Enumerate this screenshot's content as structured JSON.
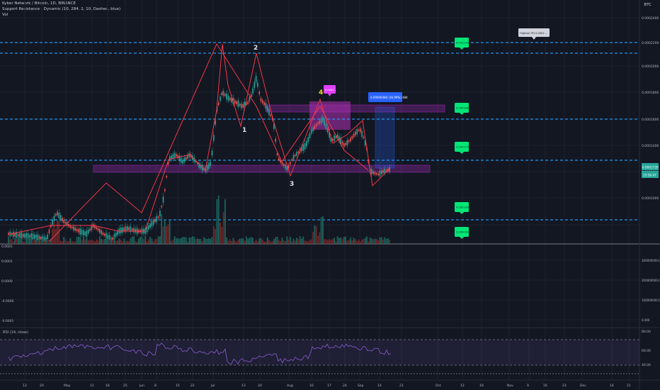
{
  "header": {
    "title": "Kyber Network / Bitcoin, 1D, BINANCE",
    "indicator": "Support Resistance - Dynamic (10, 284, 2, 10, Dashed, blue)",
    "volume_label": "Vol",
    "currency": "BTC"
  },
  "annotations": {
    "highest_label": "Highest: PH 0.0002 ...",
    "measure_label": "0.00000484 (16.99%) 484",
    "wave_top_label": "0.0001..."
  },
  "chart_data": [
    {
      "type": "line",
      "name": "price-panel",
      "xlabel": "",
      "ylabel": "",
      "x_ticks": [
        "13",
        "20",
        "May",
        "11",
        "18",
        "25",
        "Jun",
        "8",
        "15",
        "22",
        "Jul",
        "13",
        "20",
        "Aug",
        "10",
        "17",
        "24",
        "Sep",
        "14",
        "21",
        "Oct",
        "12",
        "19",
        "Nov",
        "9",
        "16",
        "23",
        "Dec",
        "14",
        "21"
      ],
      "support_resistance_levels": [
        {
          "value": 0.00023,
          "label": "0.0002300"
        },
        {
          "value": 0.000188,
          "label": "0.0001880"
        },
        {
          "value": 0.000177,
          "label": "0.0001770"
        },
        {
          "value": 0.0001,
          "label": "0.0001000"
        },
        {
          "value": 9.2e-05,
          "label": "0.0000920"
        }
      ],
      "wave_labels": [
        "1",
        "2",
        "3",
        "4"
      ],
      "last_price_label": "0.0001720",
      "countdown_label": "15:56:47",
      "y_tick_labels": [
        "0.0002400",
        "0.0002200",
        "0.0002000",
        "0.0001800",
        "0.0001600",
        "0.0001400",
        "0.0001200",
        "0.0001000"
      ]
    },
    {
      "type": "line",
      "name": "oscillator-panel",
      "y_tick_labels": [
        "0.0001",
        "0.0000",
        "-0.0000",
        "-0.0001"
      ],
      "right_tick_labels": [
        "300000000.000",
        "200000000.000",
        "100000000.000",
        "0.000"
      ],
      "left_label": "0.0001"
    },
    {
      "type": "line",
      "name": "rsi-panel",
      "title": "RSI (14, close)",
      "y_tick_labels": [
        "80.00",
        "60.00",
        "40.00"
      ],
      "upper_band": 70,
      "lower_band": 30
    }
  ],
  "colors": {
    "background": "#131722",
    "up": "#26a69a",
    "down": "#ef5350",
    "zigzag": "#f23645",
    "sr_line": "#2196f3",
    "zone": "#9c27b0",
    "sr_tag": "#00e676",
    "rsi": "#7e57c2",
    "measure": "#2962ff"
  }
}
